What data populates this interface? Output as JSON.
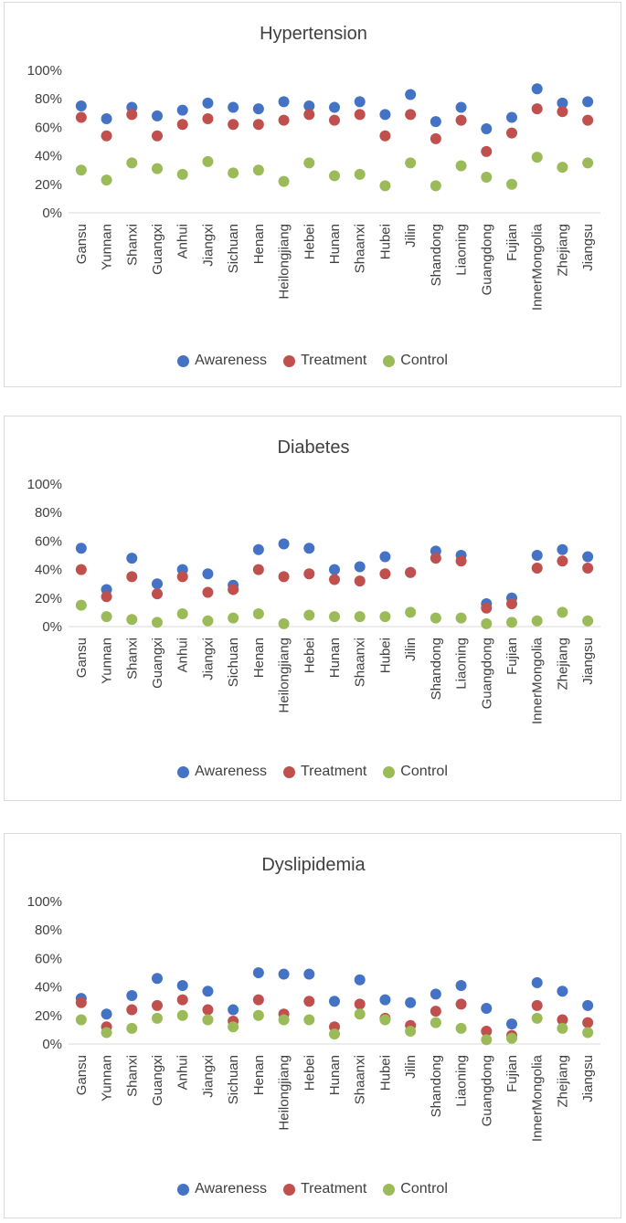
{
  "legend": {
    "awareness": "Awareness",
    "treatment": "Treatment",
    "control": "Control"
  },
  "colors": {
    "awareness": "#4472c4",
    "treatment": "#c0504d",
    "control": "#9bbb59",
    "axis": "#d9d9d9",
    "text": "#404040",
    "title": "#404040"
  },
  "chart_data": [
    {
      "type": "scatter",
      "title": "Hypertension",
      "ylim": [
        0,
        100
      ],
      "yticks": [
        "0%",
        "20%",
        "40%",
        "60%",
        "80%",
        "100%"
      ],
      "categories": [
        "Gansu",
        "Yunnan",
        "Shanxi",
        "Guangxi",
        "Anhui",
        "Jiangxi",
        "Sichuan",
        "Henan",
        "Heilongjiang",
        "Hebei",
        "Hunan",
        "Shaanxi",
        "Hubei",
        "Jilin",
        "Shandong",
        "Liaoning",
        "Guangdong",
        "Fujian",
        "InnerMongolia",
        "Zhejiang",
        "Jiangsu"
      ],
      "series": [
        {
          "name": "Awareness",
          "values": [
            75,
            66,
            74,
            68,
            72,
            77,
            74,
            73,
            78,
            75,
            74,
            78,
            69,
            83,
            64,
            74,
            59,
            67,
            87,
            77,
            78
          ]
        },
        {
          "name": "Treatment",
          "values": [
            67,
            54,
            69,
            54,
            62,
            66,
            62,
            62,
            65,
            69,
            65,
            69,
            54,
            69,
            52,
            65,
            43,
            56,
            73,
            71,
            65
          ]
        },
        {
          "name": "Control",
          "values": [
            30,
            23,
            35,
            31,
            27,
            36,
            28,
            30,
            22,
            35,
            26,
            27,
            19,
            35,
            19,
            33,
            25,
            20,
            39,
            32,
            35
          ]
        }
      ]
    },
    {
      "type": "scatter",
      "title": "Diabetes",
      "ylim": [
        0,
        100
      ],
      "yticks": [
        "0%",
        "20%",
        "40%",
        "60%",
        "80%",
        "100%"
      ],
      "categories": [
        "Gansu",
        "Yunnan",
        "Shanxi",
        "Guangxi",
        "Anhui",
        "Jiangxi",
        "Sichuan",
        "Henan",
        "Heilongjiang",
        "Hebei",
        "Hunan",
        "Shaanxi",
        "Hubei",
        "Jilin",
        "Shandong",
        "Liaoning",
        "Guangdong",
        "Fujian",
        "InnerMongolia",
        "Zhejiang",
        "Jiangsu"
      ],
      "series": [
        {
          "name": "Awareness",
          "values": [
            55,
            26,
            48,
            30,
            40,
            37,
            29,
            54,
            58,
            55,
            40,
            42,
            49,
            38,
            53,
            50,
            16,
            20,
            50,
            54,
            49
          ]
        },
        {
          "name": "Treatment",
          "values": [
            40,
            21,
            35,
            23,
            35,
            24,
            26,
            40,
            35,
            37,
            33,
            32,
            37,
            38,
            48,
            46,
            13,
            16,
            41,
            46,
            41
          ]
        },
        {
          "name": "Control",
          "values": [
            15,
            7,
            5,
            3,
            9,
            4,
            6,
            9,
            2,
            8,
            7,
            7,
            7,
            10,
            6,
            6,
            2,
            3,
            4,
            10,
            4
          ]
        }
      ]
    },
    {
      "type": "scatter",
      "title": "Dyslipidemia",
      "ylim": [
        0,
        100
      ],
      "yticks": [
        "0%",
        "20%",
        "40%",
        "60%",
        "80%",
        "100%"
      ],
      "categories": [
        "Gansu",
        "Yunnan",
        "Shanxi",
        "Guangxi",
        "Anhui",
        "Jiangxi",
        "Sichuan",
        "Henan",
        "Heilongjiang",
        "Hebei",
        "Hunan",
        "Shaanxi",
        "Hubei",
        "Jilin",
        "Shandong",
        "Liaoning",
        "Guangdong",
        "Fujian",
        "InnerMongolia",
        "Zhejiang",
        "Jiangsu"
      ],
      "series": [
        {
          "name": "Awareness",
          "values": [
            32,
            21,
            34,
            46,
            41,
            37,
            24,
            50,
            49,
            49,
            30,
            45,
            31,
            29,
            35,
            41,
            25,
            14,
            43,
            37,
            27
          ]
        },
        {
          "name": "Treatment",
          "values": [
            29,
            12,
            24,
            27,
            31,
            24,
            16,
            31,
            21,
            30,
            12,
            28,
            18,
            13,
            23,
            28,
            9,
            6,
            27,
            17,
            15
          ]
        },
        {
          "name": "Control",
          "values": [
            17,
            8,
            11,
            18,
            20,
            17,
            12,
            20,
            17,
            17,
            7,
            21,
            17,
            9,
            15,
            11,
            3,
            4,
            18,
            11,
            8
          ]
        }
      ]
    }
  ]
}
